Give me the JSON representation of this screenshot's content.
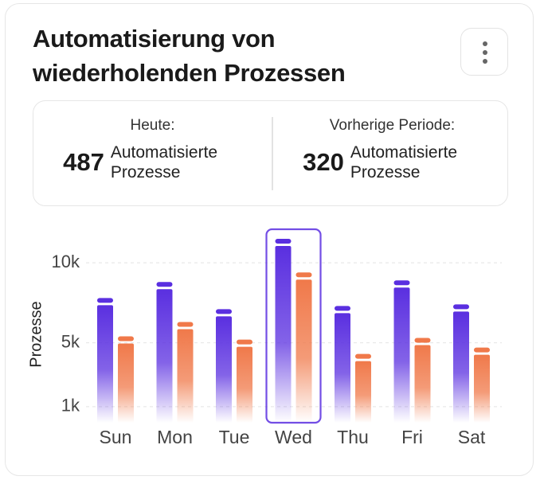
{
  "title": "Automatisierung von wiederholenden Prozessen",
  "summary": [
    {
      "label": "Heute:",
      "value": 487,
      "unit": "Automatisierte Prozesse"
    },
    {
      "label": "Vorherige Periode:",
      "value": 320,
      "unit": "Automatisierte Prozesse"
    }
  ],
  "chart_data": {
    "type": "bar",
    "y_label": "Prozesse",
    "categories": [
      "Sun",
      "Mon",
      "Tue",
      "Wed",
      "Thu",
      "Fri",
      "Sat"
    ],
    "series": [
      {
        "color": "#5a2fe0",
        "values": [
          7800,
          8800,
          7100,
          11500,
          7300,
          8900,
          7400
        ]
      },
      {
        "color": "#f0794a",
        "values": [
          5400,
          6300,
          5200,
          9400,
          4300,
          5300,
          4700
        ]
      }
    ],
    "ylim": [
      0,
      12000
    ],
    "yticks": [
      {
        "value": 1000,
        "label": "1k"
      },
      {
        "value": 5000,
        "label": "5k"
      },
      {
        "value": 10000,
        "label": "10k"
      }
    ],
    "grid": true,
    "highlight_index": 3
  }
}
